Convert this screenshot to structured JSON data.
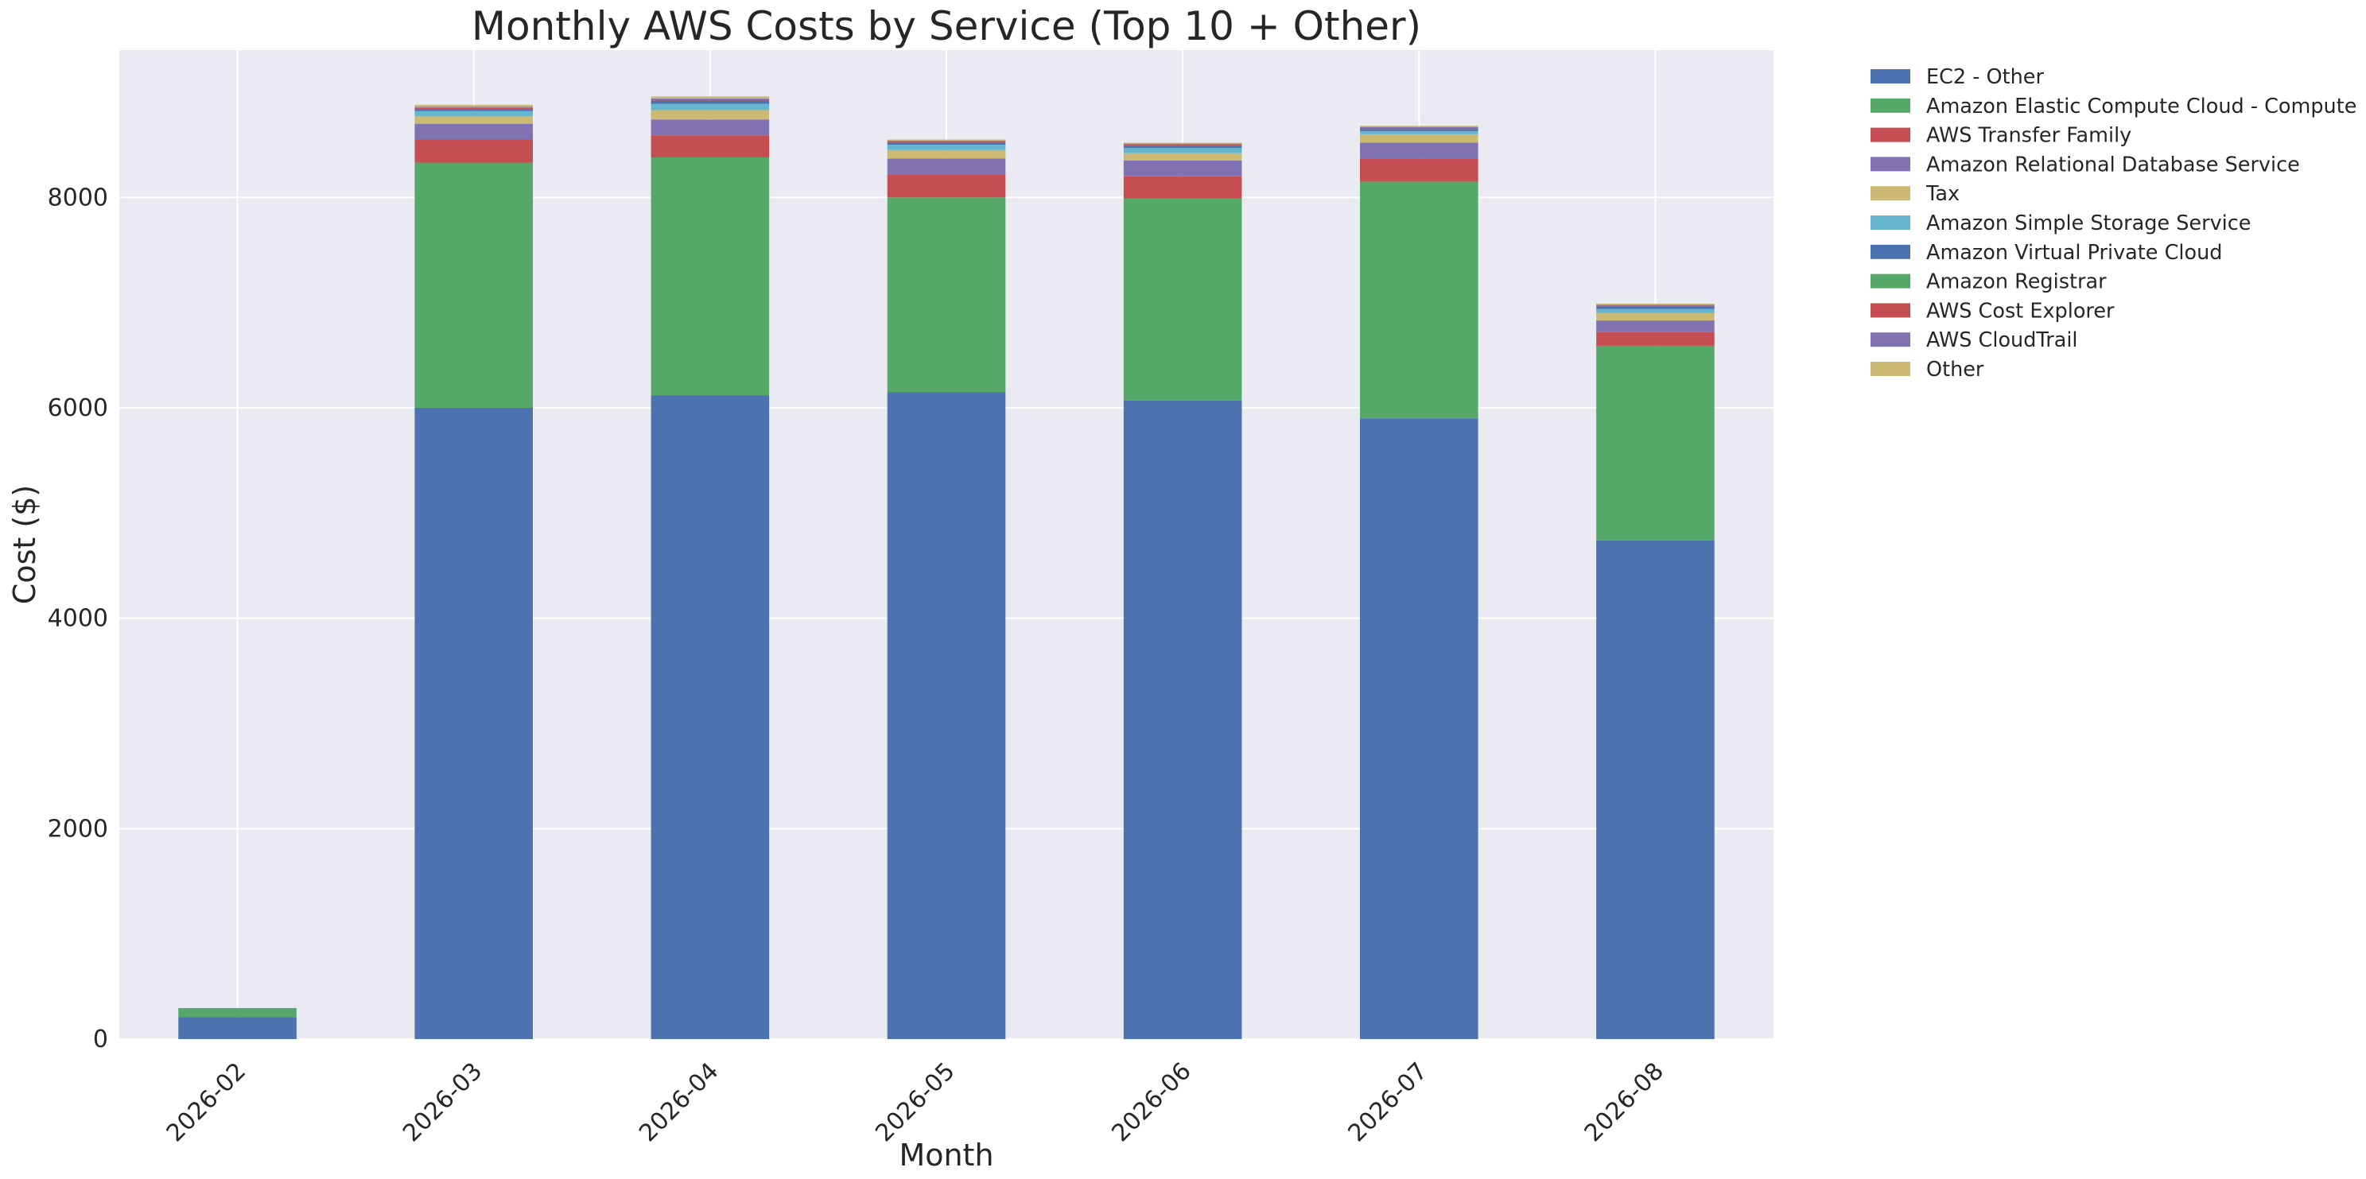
{
  "chart_data": {
    "type": "bar",
    "stacked": true,
    "title": "Monthly AWS Costs by Service (Top 10 + Other)",
    "xlabel": "Month",
    "ylabel": "Cost ($)",
    "ylim": [
      0,
      9400
    ],
    "yticks": [
      0,
      2000,
      4000,
      6000,
      8000
    ],
    "grid": true,
    "legend_placement": "outside-top-right",
    "categories": [
      "2026-02",
      "2026-03",
      "2026-04",
      "2026-05",
      "2026-06",
      "2026-07",
      "2026-08"
    ],
    "series": [
      {
        "name": "EC2 - Other",
        "color": "#4c72b0",
        "values": [
          210,
          6000,
          6120,
          6150,
          6070,
          5900,
          4740
        ]
      },
      {
        "name": "Amazon Elastic Compute Cloud - Compute",
        "color": "#55a868",
        "values": [
          70,
          2330,
          2260,
          1850,
          1920,
          2250,
          1850
        ]
      },
      {
        "name": "AWS Transfer Family",
        "color": "#c44e52",
        "values": [
          5,
          220,
          210,
          220,
          210,
          220,
          130
        ]
      },
      {
        "name": "Amazon Relational Database Service",
        "color": "#8172b2",
        "values": [
          5,
          150,
          150,
          150,
          150,
          150,
          110
        ]
      },
      {
        "name": "Tax",
        "color": "#ccb974",
        "values": [
          0,
          70,
          90,
          80,
          70,
          80,
          70
        ]
      },
      {
        "name": "Amazon Simple Storage Service",
        "color": "#64b5cd",
        "values": [
          0,
          50,
          60,
          50,
          50,
          30,
          40
        ]
      },
      {
        "name": "Amazon Virtual Private Cloud",
        "color": "#4c72b0",
        "values": [
          0,
          20,
          30,
          20,
          20,
          20,
          20
        ]
      },
      {
        "name": "Amazon Registrar",
        "color": "#55a868",
        "values": [
          5,
          0,
          0,
          0,
          0,
          0,
          0
        ]
      },
      {
        "name": "AWS Cost Explorer",
        "color": "#c44e52",
        "values": [
          0,
          10,
          10,
          10,
          10,
          10,
          10
        ]
      },
      {
        "name": "AWS CloudTrail",
        "color": "#8172b2",
        "values": [
          0,
          10,
          10,
          10,
          10,
          10,
          10
        ]
      },
      {
        "name": "Other",
        "color": "#ccb974",
        "values": [
          0,
          20,
          20,
          10,
          10,
          10,
          10
        ]
      }
    ]
  },
  "colors": {
    "plot_background": "#eaeaf2",
    "grid": "#ffffff",
    "text": "#262626"
  }
}
